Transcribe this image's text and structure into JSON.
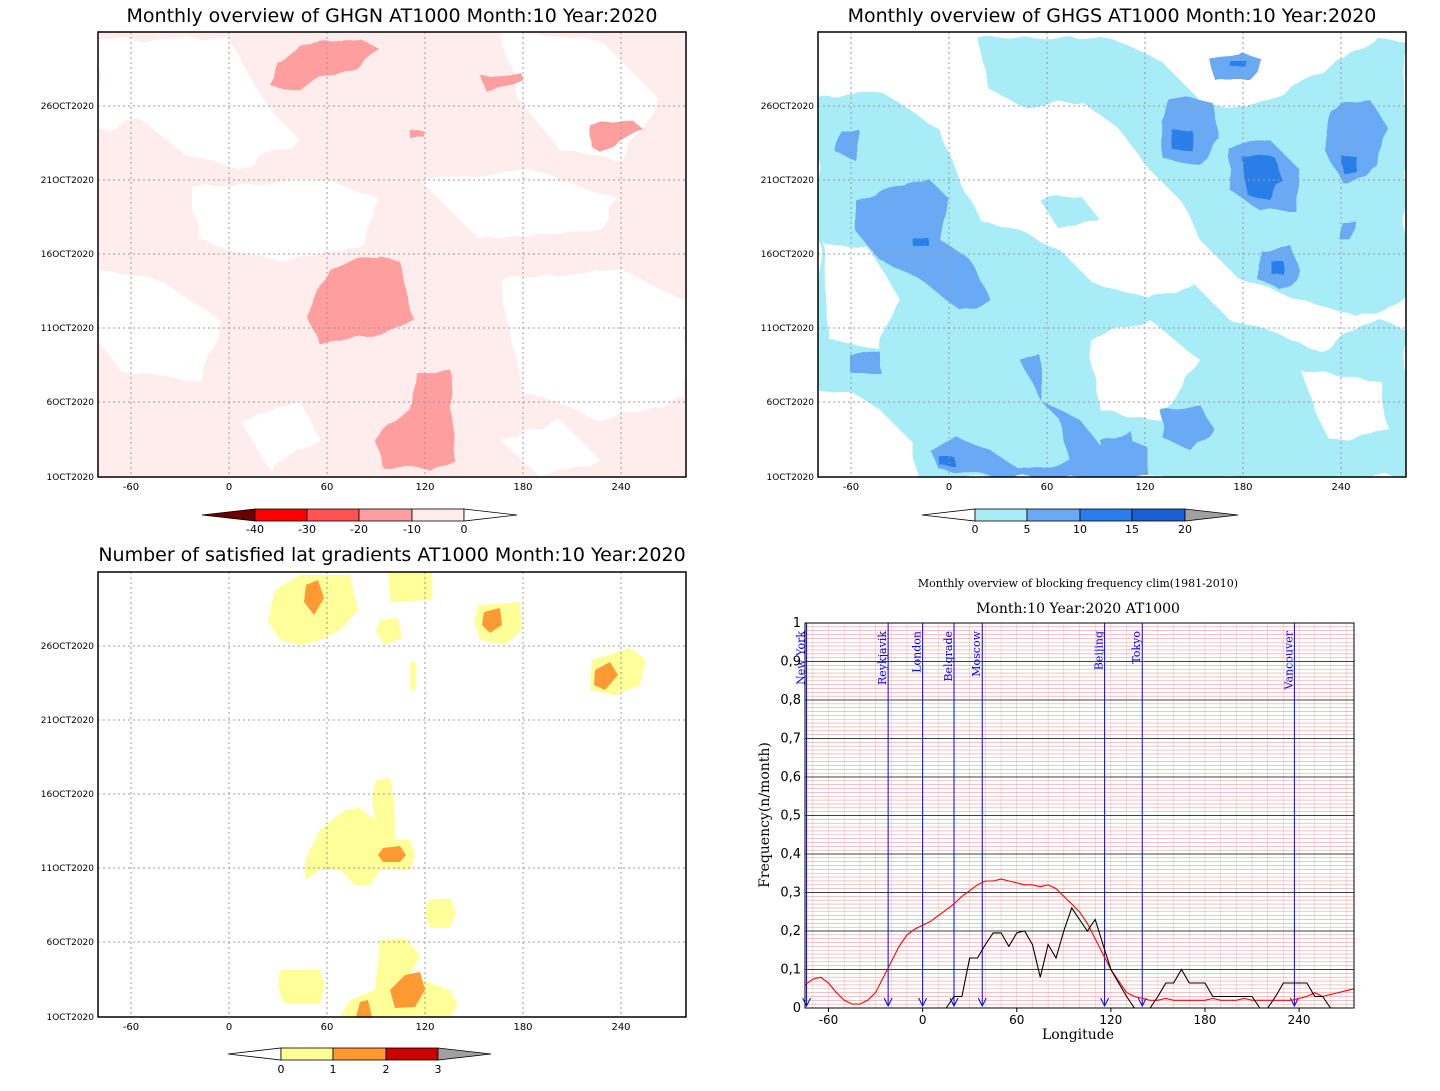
{
  "colors": {
    "ghgn_contours": [
      "#ffecec",
      "#ff9e9e"
    ],
    "ghgn_scale": [
      "#6b0000",
      "#ff0000",
      "#ff5252",
      "#ff9e9e",
      "#ffecec",
      "#ffffff"
    ],
    "ghgs_contours": [
      "#a8ecf8",
      "#6aa9f4",
      "#2a7ee8"
    ],
    "ghgs_scale": [
      "#ffffff",
      "#a8ecf8",
      "#6aa9f4",
      "#2a7ee8",
      "#1a5fd0",
      "#a0a0a0"
    ],
    "grad_contours": [
      "#ffff99",
      "#ff9933"
    ],
    "grad_scale": [
      "#ffffff",
      "#ffff99",
      "#ff9933",
      "#cc0000",
      "#a0a0a0"
    ],
    "freq_clim": "#ff0000",
    "freq_obs": "#000000",
    "city_line": "#0000ff"
  },
  "maps": [
    {
      "id": "ghgn",
      "title": "Monthly overview of GHGN AT1000 Month:10 Year:2020",
      "y_ticks": [
        "26OCT2020",
        "21OCT2020",
        "16OCT2020",
        "11OCT2020",
        "6OCT2020",
        "1OCT2020"
      ],
      "x_ticks": [
        "-60",
        "0",
        "60",
        "120",
        "180",
        "240"
      ],
      "colorbar": [
        "-40",
        "-30",
        "-20",
        "-10",
        "0"
      ]
    },
    {
      "id": "ghgs",
      "title": "Monthly overview of GHGS AT1000 Month:10 Year:2020",
      "y_ticks": [
        "26OCT2020",
        "21OCT2020",
        "16OCT2020",
        "11OCT2020",
        "6OCT2020",
        "1OCT2020"
      ],
      "x_ticks": [
        "-60",
        "0",
        "60",
        "120",
        "180",
        "240"
      ],
      "colorbar": [
        "0",
        "5",
        "10",
        "15",
        "20"
      ]
    },
    {
      "id": "grad",
      "title": "Number of satisfied lat gradients AT1000 Month:10 Year:2020",
      "y_ticks": [
        "26OCT2020",
        "21OCT2020",
        "16OCT2020",
        "11OCT2020",
        "6OCT2020",
        "1OCT2020"
      ],
      "x_ticks": [
        "-60",
        "0",
        "60",
        "120",
        "180",
        "240"
      ],
      "colorbar": [
        "0",
        "1",
        "2",
        "3"
      ]
    }
  ],
  "chart_data": {
    "type": "line",
    "title": "Monthly overview of blocking frequency clim(1981-2010)",
    "subtitle": "Month:10 Year:2020  AT1000",
    "xlabel": "Longitude",
    "ylabel": "Frequency(n/month)",
    "xlim": [
      -75,
      275
    ],
    "ylim": [
      0,
      1
    ],
    "x_tick_labels": [
      "-60",
      "0",
      "60",
      "120",
      "180",
      "240"
    ],
    "y_tick_labels": [
      "0",
      "0,1",
      "0,2",
      "0,3",
      "0,4",
      "0,5",
      "0,6",
      "0,7",
      "0,8",
      "0,9",
      "1"
    ],
    "grid": true,
    "cities": [
      {
        "name": "New York",
        "lon": -74
      },
      {
        "name": "Reykjavik",
        "lon": -22
      },
      {
        "name": "London",
        "lon": 0
      },
      {
        "name": "Belgrade",
        "lon": 20
      },
      {
        "name": "Moscow",
        "lon": 38
      },
      {
        "name": "Beijing",
        "lon": 116
      },
      {
        "name": "Tokyo",
        "lon": 140
      },
      {
        "name": "Vancouver",
        "lon": 237
      }
    ],
    "series": [
      {
        "x": [
          -75,
          -70,
          -65,
          -60,
          -55,
          -50,
          -45,
          -40,
          -35,
          -30,
          -25,
          -20,
          -15,
          -10,
          -5,
          0,
          5,
          10,
          15,
          20,
          25,
          30,
          35,
          40,
          45,
          50,
          55,
          60,
          65,
          70,
          75,
          80,
          85,
          90,
          95,
          100,
          105,
          110,
          115,
          120,
          125,
          130,
          135,
          140,
          145,
          150,
          155,
          160,
          165,
          170,
          175,
          180,
          185,
          190,
          195,
          200,
          205,
          210,
          215,
          220,
          225,
          230,
          235,
          240,
          245,
          250,
          255,
          260,
          265,
          270,
          275
        ],
        "y": [
          0.06,
          0.075,
          0.08,
          0.065,
          0.04,
          0.02,
          0.01,
          0.01,
          0.02,
          0.04,
          0.08,
          0.12,
          0.16,
          0.19,
          0.205,
          0.215,
          0.225,
          0.24,
          0.255,
          0.27,
          0.29,
          0.305,
          0.32,
          0.33,
          0.33,
          0.335,
          0.33,
          0.325,
          0.32,
          0.32,
          0.315,
          0.32,
          0.31,
          0.29,
          0.27,
          0.25,
          0.22,
          0.18,
          0.14,
          0.1,
          0.07,
          0.04,
          0.03,
          0.025,
          0.02,
          0.02,
          0.025,
          0.02,
          0.02,
          0.02,
          0.02,
          0.02,
          0.025,
          0.02,
          0.02,
          0.02,
          0.025,
          0.02,
          0.02,
          0.02,
          0.02,
          0.02,
          0.02,
          0.025,
          0.03,
          0.04,
          0.03,
          0.035,
          0.04,
          0.045,
          0.05
        ]
      },
      {
        "x": [
          -75,
          -70,
          -65,
          -60,
          -55,
          -50,
          -45,
          -40,
          -35,
          -30,
          -25,
          -20,
          -15,
          -10,
          -5,
          0,
          5,
          10,
          15,
          20,
          25,
          30,
          35,
          40,
          45,
          50,
          55,
          60,
          65,
          70,
          75,
          80,
          85,
          90,
          95,
          100,
          105,
          110,
          115,
          120,
          125,
          130,
          135,
          140,
          145,
          150,
          155,
          160,
          165,
          170,
          175,
          180,
          185,
          190,
          195,
          200,
          205,
          210,
          215,
          220,
          225,
          230,
          235,
          240,
          245,
          250,
          255,
          260,
          265,
          270,
          275
        ],
        "y": [
          0,
          0,
          0,
          0,
          0,
          0,
          0,
          0,
          0,
          0,
          0,
          0,
          0,
          0,
          0,
          0,
          0,
          0,
          0,
          0.03,
          0.03,
          0.13,
          0.13,
          0.165,
          0.195,
          0.195,
          0.16,
          0.195,
          0.2,
          0.165,
          0.08,
          0.165,
          0.13,
          0.2,
          0.26,
          0.23,
          0.2,
          0.23,
          0.165,
          0.1,
          0.065,
          0.03,
          0,
          0,
          0,
          0.03,
          0.065,
          0.065,
          0.1,
          0.065,
          0.065,
          0.065,
          0.03,
          0.03,
          0.03,
          0.03,
          0.03,
          0.03,
          0,
          0,
          0.03,
          0.065,
          0.065,
          0.065,
          0.065,
          0.03,
          0.03,
          0,
          0,
          0,
          0
        ]
      }
    ]
  }
}
